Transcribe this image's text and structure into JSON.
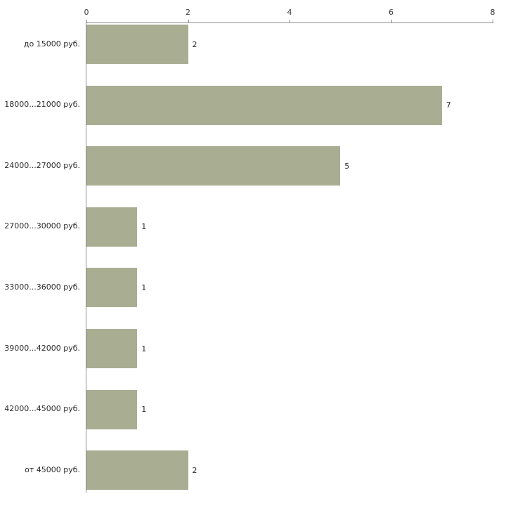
{
  "chart_data": {
    "type": "bar",
    "orientation": "horizontal",
    "title": "",
    "xlabel": "",
    "ylabel": "",
    "categories": [
      "до 15000 руб.",
      "18000...21000 руб.",
      "24000...27000 руб.",
      "27000...30000 руб.",
      "33000...36000 руб.",
      "39000...42000 руб.",
      "42000...45000 руб.",
      "от 45000 руб."
    ],
    "values": [
      2,
      7,
      5,
      1,
      1,
      1,
      1,
      2
    ],
    "xlim": [
      0,
      8
    ],
    "xticks": [
      0,
      2,
      4,
      6,
      8
    ],
    "xaxis_position": "top",
    "grid": false,
    "legend": null,
    "colors": {
      "bar": "#a9ae93",
      "axis": "#8c8c8c",
      "tick_label": "#3c3c3c",
      "text": "#2b2b2b",
      "background": "#ffffff"
    }
  }
}
